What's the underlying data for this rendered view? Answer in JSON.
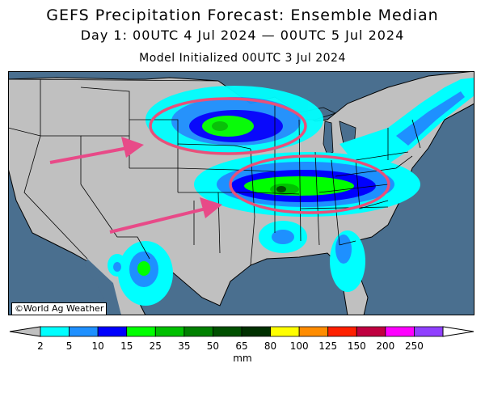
{
  "title": "GEFS Precipitation Forecast: Ensemble Median",
  "valid_period": "Day 1: 00UTC 4 Jul 2024 — 00UTC 5 Jul 2024",
  "initialized": "Model Initialized 00UTC 3 Jul 2024",
  "credit": "©World Ag Weather",
  "legend": {
    "unit": "mm",
    "ticks": [
      "2",
      "5",
      "10",
      "15",
      "25",
      "35",
      "50",
      "65",
      "80",
      "100",
      "125",
      "150",
      "200",
      "250"
    ],
    "colors": [
      "#00ffff",
      "#1e90ff",
      "#0000ff",
      "#00ff00",
      "#00c000",
      "#008000",
      "#005000",
      "#003000",
      "#ffff00",
      "#ff8c00",
      "#ff2000",
      "#c00040",
      "#ff00ff",
      "#9040ff"
    ]
  },
  "annotations": {
    "ellipse_color": "#e8507a",
    "arrow_color": "#e84a88"
  },
  "colors": {
    "ocean": "#4a6f8f",
    "land": "#c0c0c0",
    "borders": "#000000"
  }
}
